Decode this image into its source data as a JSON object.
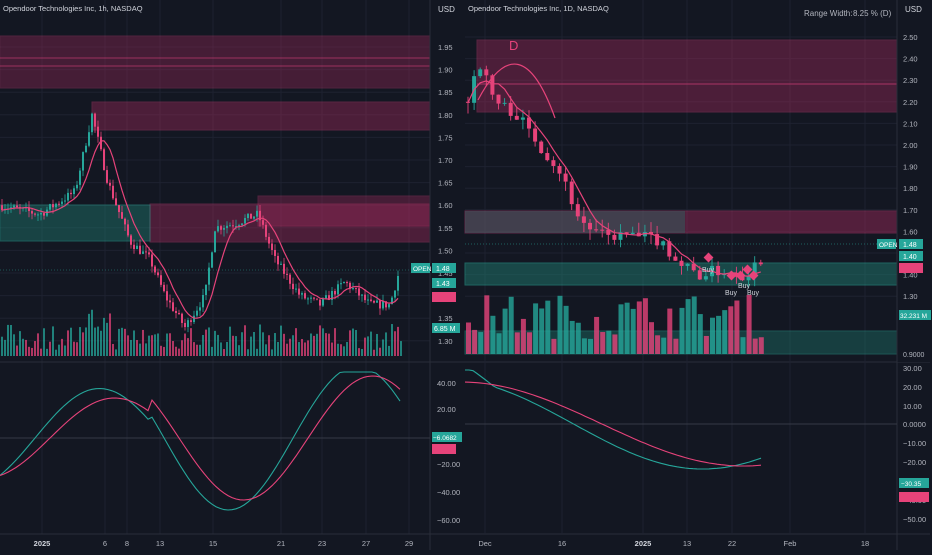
{
  "colors": {
    "bg": "#131722",
    "bull": "#26a69a",
    "bear": "#e6437a",
    "zone_pink": "#a22a5c",
    "zone_teal": "#1f7a6e",
    "grid": "#1e2230",
    "text": "#b2b5be"
  },
  "left_chart": {
    "title": "Opendoor Technologies Inc, 1h, NASDAQ",
    "currency": "USD",
    "price_ticks": [
      "1.95",
      "1.90",
      "1.85",
      "1.80",
      "1.75",
      "1.70",
      "1.65",
      "1.60",
      "1.55",
      "1.50",
      "1.45",
      "1.40",
      "1.35",
      "1.30"
    ],
    "symbol_label": "OPEN",
    "last_price": "1.48",
    "price_badge_2": "1.43",
    "volume_label": "6.85 M",
    "macd_ticks": [
      "40.00",
      "20.00",
      "−20.00",
      "−40.00",
      "−60.00"
    ],
    "macd_value": "−6.0682",
    "x_labels": [
      "2025",
      "6",
      "8",
      "13",
      "15",
      "21",
      "23",
      "27",
      "29"
    ]
  },
  "right_chart": {
    "title": "Opendoor Technologies Inc, 1D, NASDAQ",
    "currency": "USD",
    "range_width_label": "Range Width:",
    "range_width_value": "8.25 % (D)",
    "price_ticks": [
      "2.50",
      "2.40",
      "2.30",
      "2.20",
      "2.10",
      "2.00",
      "1.90",
      "1.80",
      "1.70",
      "1.60",
      "1.50",
      "1.40",
      "1.30"
    ],
    "symbol_label": "OPEN",
    "last_price": "1.48",
    "price_badge_2": "1.40",
    "volume_label": "32.231 M",
    "volume_tick": "0.9000",
    "macd_ticks": [
      "30.00",
      "20.00",
      "10.00",
      "0.0000",
      "−10.00",
      "−20.00",
      "−40.00",
      "−50.00"
    ],
    "macd_value": "−30.35",
    "pattern_label": "D",
    "signals": [
      "Buy",
      "Buy",
      "Buy",
      "Buy"
    ],
    "x_labels": [
      "Dec",
      "16",
      "2025",
      "13",
      "22",
      "Feb",
      "18"
    ]
  }
}
